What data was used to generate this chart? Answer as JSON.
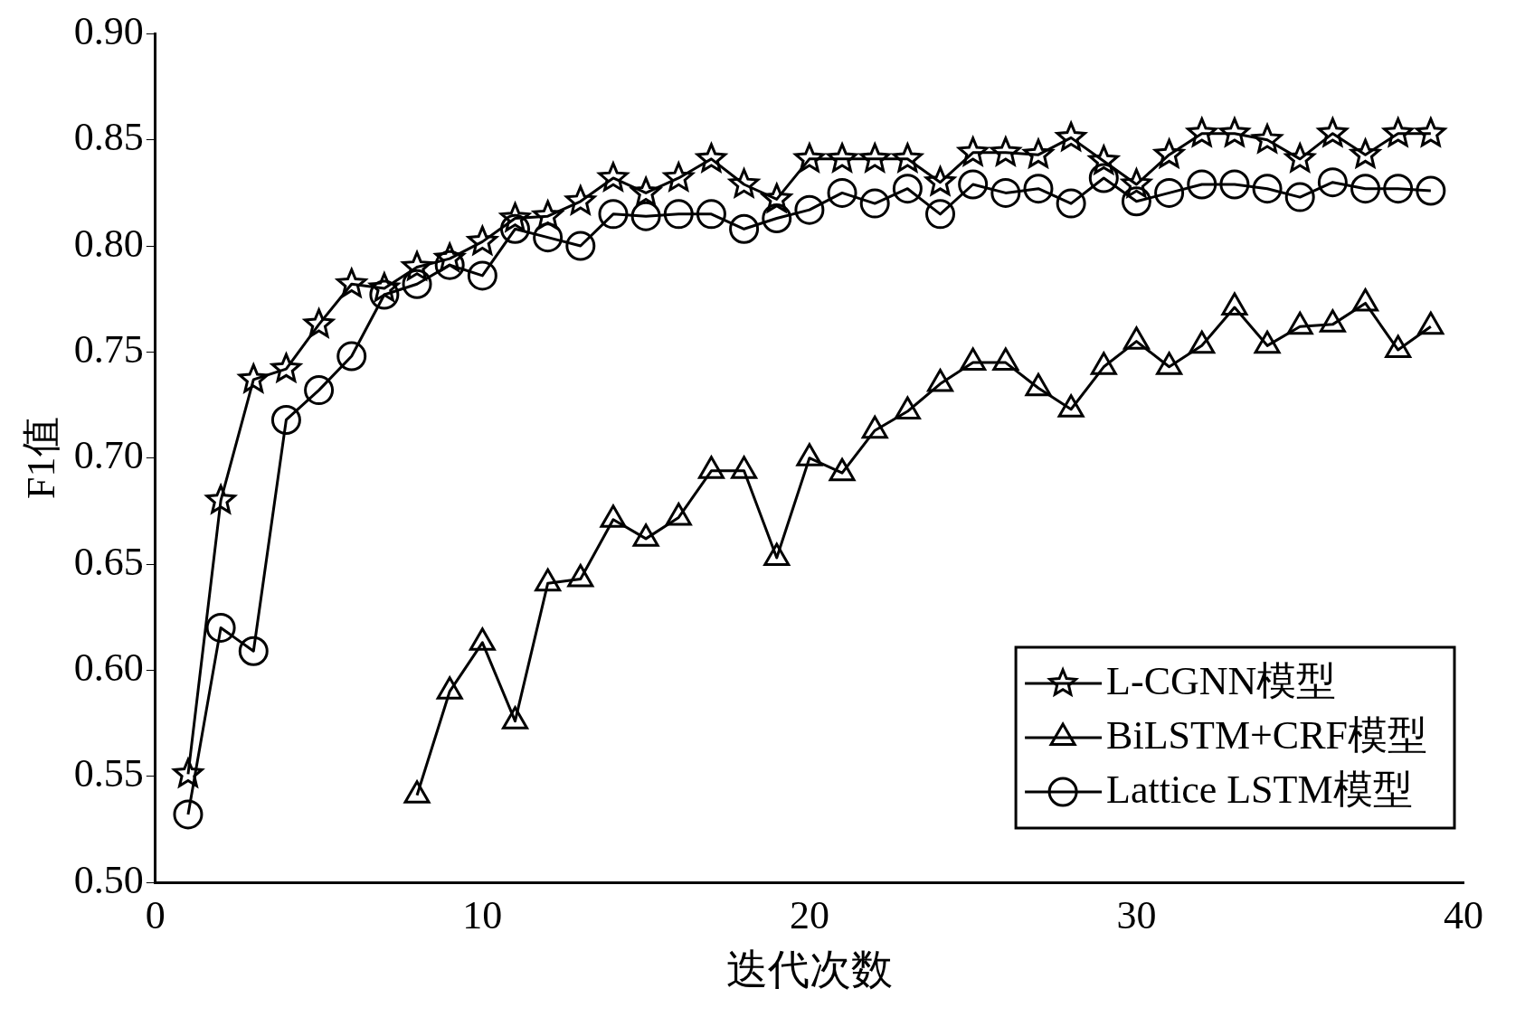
{
  "chart_data": {
    "type": "line",
    "xlabel": "迭代次数",
    "ylabel": "F1值",
    "xlim": [
      0,
      40
    ],
    "xticks": [
      0,
      10,
      20,
      30,
      40
    ],
    "ylim": [
      0.5,
      0.9
    ],
    "yticks": [
      {
        "value": 0.5,
        "label": "0.50"
      },
      {
        "value": 0.55,
        "label": "0.55"
      },
      {
        "value": 0.6,
        "label": "0.60"
      },
      {
        "value": 0.65,
        "label": "0.65"
      },
      {
        "value": 0.7,
        "label": "0.70"
      },
      {
        "value": 0.75,
        "label": "0.75"
      },
      {
        "value": 0.8,
        "label": "0.80"
      },
      {
        "value": 0.85,
        "label": "0.85"
      },
      {
        "value": 0.9,
        "label": "0.90"
      }
    ],
    "grid": false,
    "legend": "bottom right",
    "line_style": "solid",
    "x": [
      1,
      2,
      3,
      4,
      5,
      6,
      7,
      8,
      9,
      10,
      11,
      12,
      13,
      14,
      15,
      16,
      17,
      18,
      19,
      20,
      21,
      22,
      23,
      24,
      25,
      26,
      27,
      28,
      29,
      30,
      31,
      32,
      33,
      34,
      35,
      36,
      37,
      38,
      39
    ],
    "series": [
      {
        "name": "L-CGNN模型",
        "color": "#000000",
        "marker": "star",
        "values": [
          0.551,
          0.68,
          0.737,
          0.742,
          0.763,
          0.782,
          0.78,
          0.79,
          0.794,
          0.802,
          0.813,
          0.814,
          0.821,
          0.832,
          0.825,
          0.832,
          0.841,
          0.829,
          0.822,
          0.841,
          0.841,
          0.841,
          0.841,
          0.83,
          0.844,
          0.844,
          0.843,
          0.851,
          0.84,
          0.829,
          0.843,
          0.853,
          0.853,
          0.85,
          0.841,
          0.853,
          0.843,
          0.853,
          0.853
        ]
      },
      {
        "name": "BiLSTM+CRF模型",
        "color": "#000000",
        "marker": "triangle",
        "values": [
          null,
          null,
          null,
          null,
          null,
          null,
          null,
          0.541,
          0.59,
          0.613,
          0.576,
          0.641,
          0.643,
          0.671,
          0.662,
          0.672,
          0.694,
          0.694,
          0.653,
          0.7,
          0.693,
          0.713,
          0.722,
          0.735,
          0.745,
          0.745,
          0.733,
          0.723,
          0.743,
          0.755,
          0.743,
          0.753,
          0.771,
          0.753,
          0.762,
          0.763,
          0.773,
          0.751,
          0.762
        ]
      },
      {
        "name": "Lattice LSTM模型",
        "color": "#000000",
        "marker": "circle",
        "values": [
          0.532,
          0.62,
          0.609,
          0.718,
          0.732,
          0.748,
          0.777,
          0.782,
          0.791,
          0.786,
          0.808,
          0.804,
          0.8,
          0.815,
          0.814,
          0.815,
          0.815,
          0.808,
          0.813,
          0.817,
          0.825,
          0.82,
          0.827,
          0.815,
          0.829,
          0.825,
          0.827,
          0.82,
          0.832,
          0.821,
          0.825,
          0.829,
          0.829,
          0.827,
          0.823,
          0.83,
          0.827,
          0.827,
          0.826
        ]
      }
    ]
  }
}
